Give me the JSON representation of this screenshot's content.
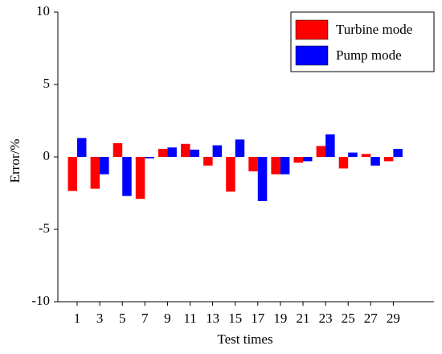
{
  "chart_data": {
    "type": "bar",
    "x_label": "Test times",
    "y_label": "Error/%",
    "categories": [
      "1",
      "3",
      "5",
      "7",
      "9",
      "11",
      "13",
      "15",
      "17",
      "19",
      "21",
      "23",
      "25",
      "27",
      "29"
    ],
    "series": [
      {
        "name": "Turbine mode",
        "color": "#ff0000",
        "values": [
          -2.35,
          -2.2,
          0.95,
          -2.9,
          0.55,
          0.9,
          -0.6,
          -2.4,
          -1.0,
          -1.2,
          -0.4,
          0.75,
          -0.8,
          0.2,
          -0.3
        ]
      },
      {
        "name": "Pump mode",
        "color": "#0000ff",
        "values": [
          1.3,
          -1.2,
          -2.7,
          -0.1,
          0.65,
          0.5,
          0.8,
          1.2,
          -3.05,
          -1.2,
          -0.3,
          1.55,
          0.3,
          -0.6,
          0.55
        ]
      }
    ],
    "ylim": [
      -10,
      10
    ],
    "yticks": [
      -10,
      -5,
      0,
      5,
      10
    ],
    "legend": "top-right",
    "grid": false
  }
}
